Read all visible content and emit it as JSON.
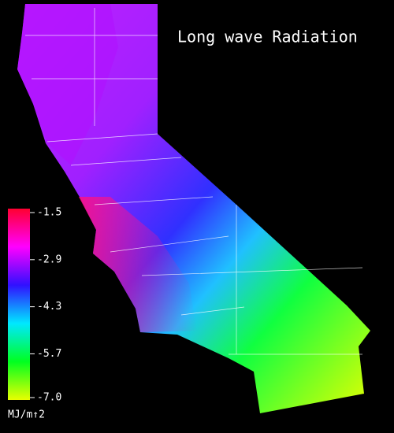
{
  "title": "Long wave Radiation",
  "colorbar": {
    "range": [
      -7.0,
      -1.5
    ],
    "ticks": [
      -1.5,
      -2.9,
      -4.3,
      -5.7,
      {
        "value": -7.0,
        "label": "-7.0"
      }
    ],
    "unit": "MJ/m↑2",
    "colors": [
      "#e8ff00",
      "#00ff20",
      "#00e8ff",
      "#3010ff",
      "#ff00ff",
      "#ff0030"
    ]
  }
}
